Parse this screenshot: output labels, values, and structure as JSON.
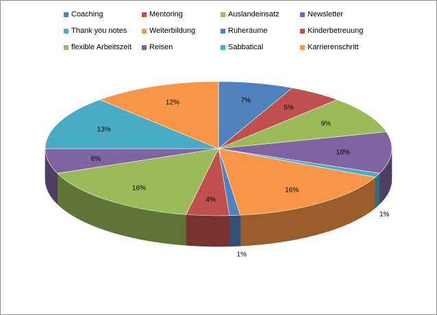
{
  "chart_data": {
    "type": "pie",
    "title": "",
    "style": "3d",
    "legend_position": "top",
    "categories": [
      "Coaching",
      "Mentoring",
      "Auslandeinsatz",
      "Newsletter",
      "Thank you notes",
      "Weiterbildung",
      "Ruheräume",
      "Kinderbetreuung",
      "flexible Arbeitszeit",
      "Reisen",
      "Sabbatical",
      "Karrierenschritt"
    ],
    "values": [
      7,
      5,
      9,
      10,
      1,
      16,
      1,
      4,
      16,
      6,
      13,
      12
    ],
    "data_labels": [
      "7%",
      "5%",
      "9%",
      "10%",
      "1%",
      "16%",
      "1%",
      "4%",
      "16%",
      "6%",
      "13%",
      "12%"
    ],
    "colors": [
      "#4f81bd",
      "#c0504d",
      "#9bbb59",
      "#8064a2",
      "#4bacc6",
      "#f79646",
      "#4f81bd",
      "#c0504d",
      "#9bbb59",
      "#8064a2",
      "#4bacc6",
      "#f79646"
    ]
  }
}
